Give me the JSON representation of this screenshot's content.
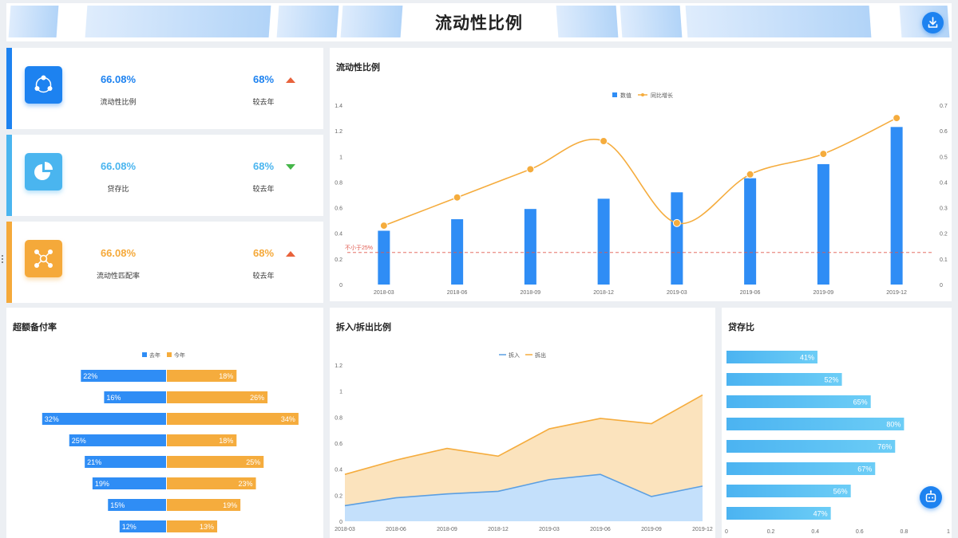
{
  "header": {
    "title": "流动性比例"
  },
  "kpis": [
    {
      "value": "66.08%",
      "label": "流动性比例",
      "compare_value": "68%",
      "compare_label": "较去年",
      "trend": "up",
      "color": "#1d82f0",
      "icon": "share-nodes-icon"
    },
    {
      "value": "66.08%",
      "label": "贷存比",
      "compare_value": "68%",
      "compare_label": "较去年",
      "trend": "down",
      "color": "#4ab5ef",
      "icon": "pie-chart-icon"
    },
    {
      "value": "66.08%",
      "label": "流动性匹配率",
      "compare_value": "68%",
      "compare_label": "较去年",
      "trend": "up",
      "color": "#f5a93a",
      "icon": "network-icon"
    }
  ],
  "colors": {
    "blue": "#2f8df5",
    "orange": "#f5ac3d",
    "up": "#e8623b",
    "down": "#45b649",
    "cyan": "#5cc4f4"
  },
  "chart_data": [
    {
      "id": "main",
      "type": "bar",
      "title": "流动性比例",
      "categories": [
        "2018-03",
        "2018-06",
        "2018-09",
        "2018-12",
        "2019-03",
        "2019-06",
        "2019-09",
        "2019-12"
      ],
      "series": [
        {
          "name": "数值",
          "type": "bar",
          "axis": "left",
          "values": [
            0.42,
            0.51,
            0.59,
            0.67,
            0.72,
            0.83,
            0.94,
            1.23
          ]
        },
        {
          "name": "同比增长",
          "type": "line",
          "axis": "right",
          "values": [
            0.23,
            0.34,
            0.45,
            0.56,
            0.24,
            0.43,
            0.51,
            0.65
          ]
        }
      ],
      "ylim_left": [
        0,
        1.4
      ],
      "yticks_left": [
        0,
        0.2,
        0.4,
        0.6,
        0.8,
        1,
        1.2,
        1.4
      ],
      "ylim_right": [
        0,
        0.7
      ],
      "yticks_right": [
        0,
        0.1,
        0.2,
        0.3,
        0.4,
        0.5,
        0.6,
        0.7
      ],
      "threshold": {
        "value": 0.25,
        "axis": "left",
        "label": "不小于25%"
      },
      "legend": "top-center"
    },
    {
      "id": "excess",
      "type": "bar",
      "orientation": "horizontal-butterfly",
      "title": "超额备付率",
      "series": [
        {
          "name": "去年",
          "values": [
            22,
            16,
            32,
            25,
            21,
            19,
            15,
            12
          ]
        },
        {
          "name": "今年",
          "values": [
            18,
            26,
            34,
            18,
            25,
            23,
            19,
            13
          ]
        }
      ],
      "value_suffix": "%",
      "legend": "top-center"
    },
    {
      "id": "inout",
      "type": "area",
      "title": "拆入/拆出比例",
      "categories": [
        "2018-03",
        "2018-06",
        "2018-09",
        "2018-12",
        "2019-03",
        "2019-06",
        "2019-09",
        "2019-12"
      ],
      "series": [
        {
          "name": "拆入",
          "values": [
            0.12,
            0.18,
            0.21,
            0.23,
            0.32,
            0.36,
            0.19,
            0.27
          ]
        },
        {
          "name": "拆出",
          "values": [
            0.36,
            0.47,
            0.56,
            0.5,
            0.71,
            0.79,
            0.75,
            0.97
          ]
        }
      ],
      "ylim": [
        0,
        1.2
      ],
      "yticks": [
        0,
        0.2,
        0.4,
        0.6,
        0.8,
        1,
        1.2
      ],
      "legend": "top-center"
    },
    {
      "id": "loan",
      "type": "bar",
      "orientation": "horizontal",
      "title": "贷存比",
      "values": [
        0.41,
        0.52,
        0.65,
        0.8,
        0.76,
        0.67,
        0.56,
        0.47
      ],
      "labels": [
        "41%",
        "52%",
        "65%",
        "80%",
        "76%",
        "67%",
        "56%",
        "47%"
      ],
      "xlim": [
        0,
        1
      ],
      "xticks": [
        0,
        0.2,
        0.4,
        0.6,
        0.8,
        1
      ]
    }
  ]
}
